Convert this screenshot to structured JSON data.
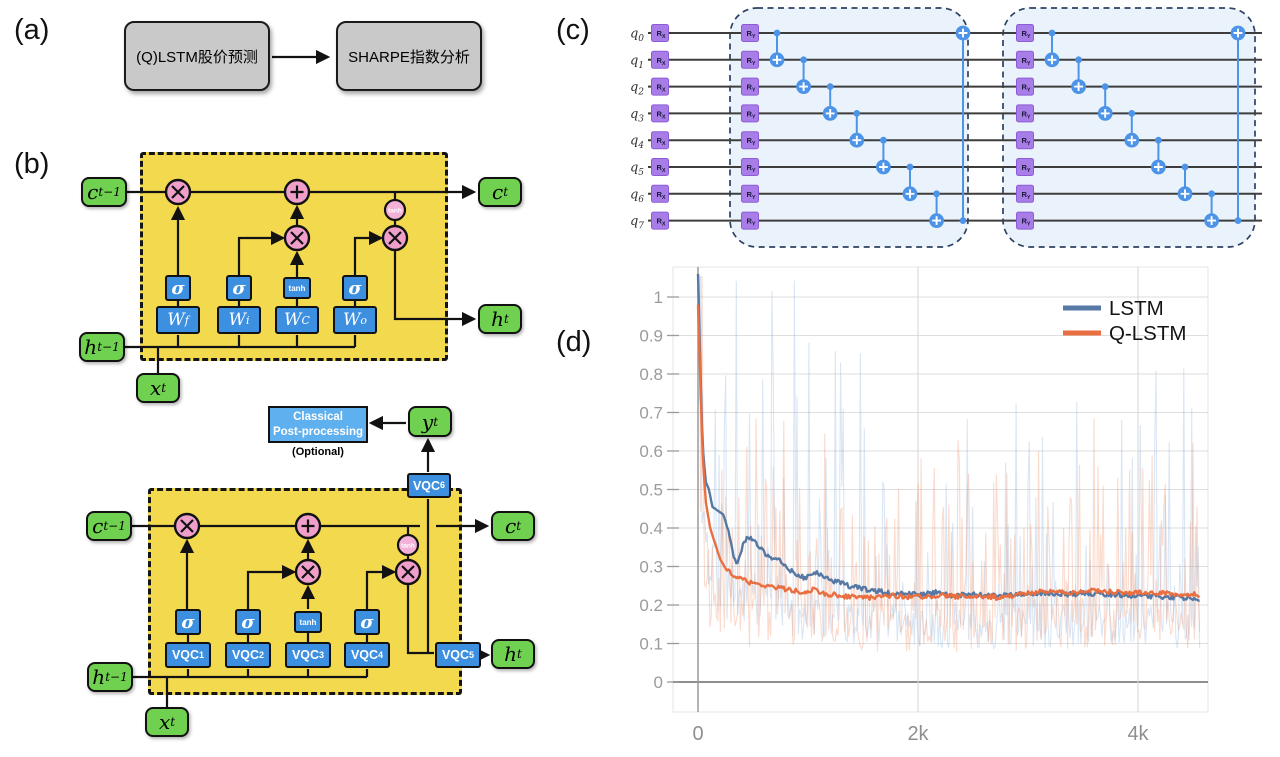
{
  "panels": {
    "a": {
      "label": "(a)",
      "flow": {
        "box1": "(Q)LSTM股价预测",
        "box2": "SHARPE指数分析"
      }
    },
    "b": {
      "label": "(b)",
      "classical_cell": {
        "c_prev": {
          "base": "c",
          "sub": "t−1"
        },
        "h_prev": {
          "base": "h",
          "sub": "t−1"
        },
        "x_in": {
          "base": "x",
          "sub": "t"
        },
        "c_out": {
          "base": "c",
          "sub": "t"
        },
        "h_out": {
          "base": "h",
          "sub": "t"
        },
        "gates": [
          "σ",
          "σ",
          "tanh",
          "σ"
        ],
        "weights": [
          {
            "base": "W",
            "sub": "f"
          },
          {
            "base": "W",
            "sub": "i"
          },
          {
            "base": "W",
            "sub": "C"
          },
          {
            "base": "W",
            "sub": "o"
          }
        ],
        "ops": {
          "mul": "⊗",
          "add": "⊕",
          "tanh": "tanh"
        }
      },
      "quantum_cell": {
        "c_prev": {
          "base": "c",
          "sub": "t−1"
        },
        "h_prev": {
          "base": "h",
          "sub": "t−1"
        },
        "x_in": {
          "base": "x",
          "sub": "t"
        },
        "c_out": {
          "base": "c",
          "sub": "t"
        },
        "h_out": {
          "base": "h",
          "sub": "t"
        },
        "y_out": {
          "base": "y",
          "sub": "t"
        },
        "gates": [
          "σ",
          "σ",
          "tanh",
          "σ"
        ],
        "vqcs": [
          {
            "base": "VQC",
            "sub": "1"
          },
          {
            "base": "VQC",
            "sub": "2"
          },
          {
            "base": "VQC",
            "sub": "3"
          },
          {
            "base": "VQC",
            "sub": "4"
          },
          {
            "base": "VQC",
            "sub": "5"
          },
          {
            "base": "VQC",
            "sub": "6"
          }
        ],
        "postprocess": {
          "line1": "Classical",
          "line2": "Post-processing",
          "note": "(Optional)"
        },
        "ops": {
          "mul": "⊗",
          "add": "⊕",
          "tanh": "tanh"
        }
      }
    },
    "c": {
      "label": "(c)",
      "circuit": {
        "qubit_base": "q",
        "qubit_subs": [
          "0",
          "1",
          "2",
          "3",
          "4",
          "5",
          "6",
          "7"
        ],
        "init_gate": {
          "base": "R",
          "sub": "X"
        },
        "layer_gate": {
          "base": "R",
          "sub": "Y"
        },
        "blocks": 2,
        "entanglement": "CNOT cascade i→i+1 then wrap 7→0",
        "colors": {
          "gate_fill": "#a87de8",
          "gate_border": "#8c5cd8",
          "wire": "#3d3d3d",
          "cnot": "#4d94e8",
          "block_fill": "#eaf3fb",
          "block_border": "#2c4161"
        }
      }
    },
    "d": {
      "label": "(d)"
    }
  },
  "chart_data": {
    "type": "line",
    "title": "",
    "xlabel": "",
    "ylabel": "",
    "xlim": [
      0,
      4560
    ],
    "ylim": [
      -0.08,
      1.08
    ],
    "grid": true,
    "legend_position": "top-right",
    "x_ticks": [
      "0",
      "2k",
      "4k"
    ],
    "x_tick_values": [
      0,
      2000,
      4000
    ],
    "y_ticks": [
      "0",
      "0.1",
      "0.2",
      "0.3",
      "0.4",
      "0.5",
      "0.6",
      "0.7",
      "0.8",
      "0.9",
      "1"
    ],
    "legend": [
      {
        "name": "LSTM",
        "color": "#5578a4"
      },
      {
        "name": "Q-LSTM",
        "color": "#e96f41"
      }
    ],
    "series": [
      {
        "name": "LSTM",
        "color": "#5578a4",
        "raw_color": "#85abdb",
        "raw_opacity": 0.3,
        "points": [
          [
            0,
            1.06
          ],
          [
            15,
            0.9
          ],
          [
            40,
            0.62
          ],
          [
            70,
            0.52
          ],
          [
            100,
            0.5
          ],
          [
            130,
            0.455
          ],
          [
            180,
            0.445
          ],
          [
            230,
            0.435
          ],
          [
            270,
            0.4
          ],
          [
            310,
            0.345
          ],
          [
            355,
            0.3
          ],
          [
            390,
            0.335
          ],
          [
            420,
            0.365
          ],
          [
            455,
            0.378
          ],
          [
            490,
            0.372
          ],
          [
            530,
            0.36
          ],
          [
            580,
            0.345
          ],
          [
            627,
            0.33
          ],
          [
            684,
            0.32
          ],
          [
            745,
            0.317
          ],
          [
            810,
            0.3
          ],
          [
            866,
            0.283
          ],
          [
            920,
            0.272
          ],
          [
            980,
            0.272
          ],
          [
            1040,
            0.283
          ],
          [
            1090,
            0.283
          ],
          [
            1130,
            0.278
          ],
          [
            1200,
            0.266
          ],
          [
            1264,
            0.26
          ],
          [
            1340,
            0.252
          ],
          [
            1410,
            0.247
          ],
          [
            1500,
            0.242
          ],
          [
            1600,
            0.237
          ],
          [
            1700,
            0.233
          ],
          [
            1800,
            0.23
          ],
          [
            1900,
            0.228
          ],
          [
            2000,
            0.227
          ],
          [
            2100,
            0.229
          ],
          [
            2160,
            0.234
          ],
          [
            2220,
            0.228
          ],
          [
            2300,
            0.226
          ],
          [
            2400,
            0.226
          ],
          [
            2500,
            0.227
          ],
          [
            2600,
            0.225
          ],
          [
            2700,
            0.225
          ],
          [
            2800,
            0.224
          ],
          [
            2900,
            0.227
          ],
          [
            3000,
            0.229
          ],
          [
            3100,
            0.231
          ],
          [
            3200,
            0.23
          ],
          [
            3300,
            0.229
          ],
          [
            3400,
            0.228
          ],
          [
            3500,
            0.23
          ],
          [
            3600,
            0.229
          ],
          [
            3700,
            0.228
          ],
          [
            3800,
            0.227
          ],
          [
            3900,
            0.225
          ],
          [
            4000,
            0.224
          ],
          [
            4100,
            0.223
          ],
          [
            4200,
            0.222
          ],
          [
            4300,
            0.221
          ],
          [
            4400,
            0.219
          ],
          [
            4500,
            0.216
          ],
          [
            4560,
            0.213
          ]
        ]
      },
      {
        "name": "Q-LSTM",
        "color": "#e96f41",
        "raw_color": "#ef8e66",
        "raw_opacity": 0.32,
        "points": [
          [
            0,
            0.98
          ],
          [
            15,
            0.85
          ],
          [
            40,
            0.6
          ],
          [
            70,
            0.47
          ],
          [
            110,
            0.4
          ],
          [
            155,
            0.36
          ],
          [
            200,
            0.32
          ],
          [
            250,
            0.295
          ],
          [
            290,
            0.283
          ],
          [
            340,
            0.272
          ],
          [
            382,
            0.267
          ],
          [
            440,
            0.262
          ],
          [
            480,
            0.258
          ],
          [
            536,
            0.255
          ],
          [
            600,
            0.25
          ],
          [
            684,
            0.247
          ],
          [
            760,
            0.243
          ],
          [
            836,
            0.24
          ],
          [
            900,
            0.237
          ],
          [
            990,
            0.234
          ],
          [
            1060,
            0.24
          ],
          [
            1136,
            0.231
          ],
          [
            1210,
            0.227
          ],
          [
            1290,
            0.224
          ],
          [
            1380,
            0.222
          ],
          [
            1470,
            0.221
          ],
          [
            1564,
            0.22
          ],
          [
            1650,
            0.222
          ],
          [
            1750,
            0.224
          ],
          [
            1850,
            0.222
          ],
          [
            1950,
            0.221
          ],
          [
            2050,
            0.222
          ],
          [
            2150,
            0.224
          ],
          [
            2250,
            0.225
          ],
          [
            2350,
            0.222
          ],
          [
            2450,
            0.221
          ],
          [
            2550,
            0.22
          ],
          [
            2650,
            0.221
          ],
          [
            2750,
            0.219
          ],
          [
            2850,
            0.222
          ],
          [
            2950,
            0.228
          ],
          [
            3050,
            0.233
          ],
          [
            3150,
            0.237
          ],
          [
            3250,
            0.235
          ],
          [
            3350,
            0.232
          ],
          [
            3450,
            0.234
          ],
          [
            3550,
            0.237
          ],
          [
            3650,
            0.236
          ],
          [
            3750,
            0.234
          ],
          [
            3850,
            0.232
          ],
          [
            3950,
            0.231
          ],
          [
            4050,
            0.231
          ],
          [
            4150,
            0.232
          ],
          [
            4250,
            0.231
          ],
          [
            4350,
            0.229
          ],
          [
            4450,
            0.228
          ],
          [
            4560,
            0.226
          ]
        ]
      }
    ],
    "raw_noise": {
      "seed": 11,
      "step": 12,
      "clamp": [
        0.065,
        1.055
      ],
      "factors": {
        "LSTM": [
          0.38,
          3.1,
          6,
          0.45
        ],
        "Q-LSTM": [
          0.35,
          2.2,
          5,
          0.5
        ]
      }
    }
  }
}
